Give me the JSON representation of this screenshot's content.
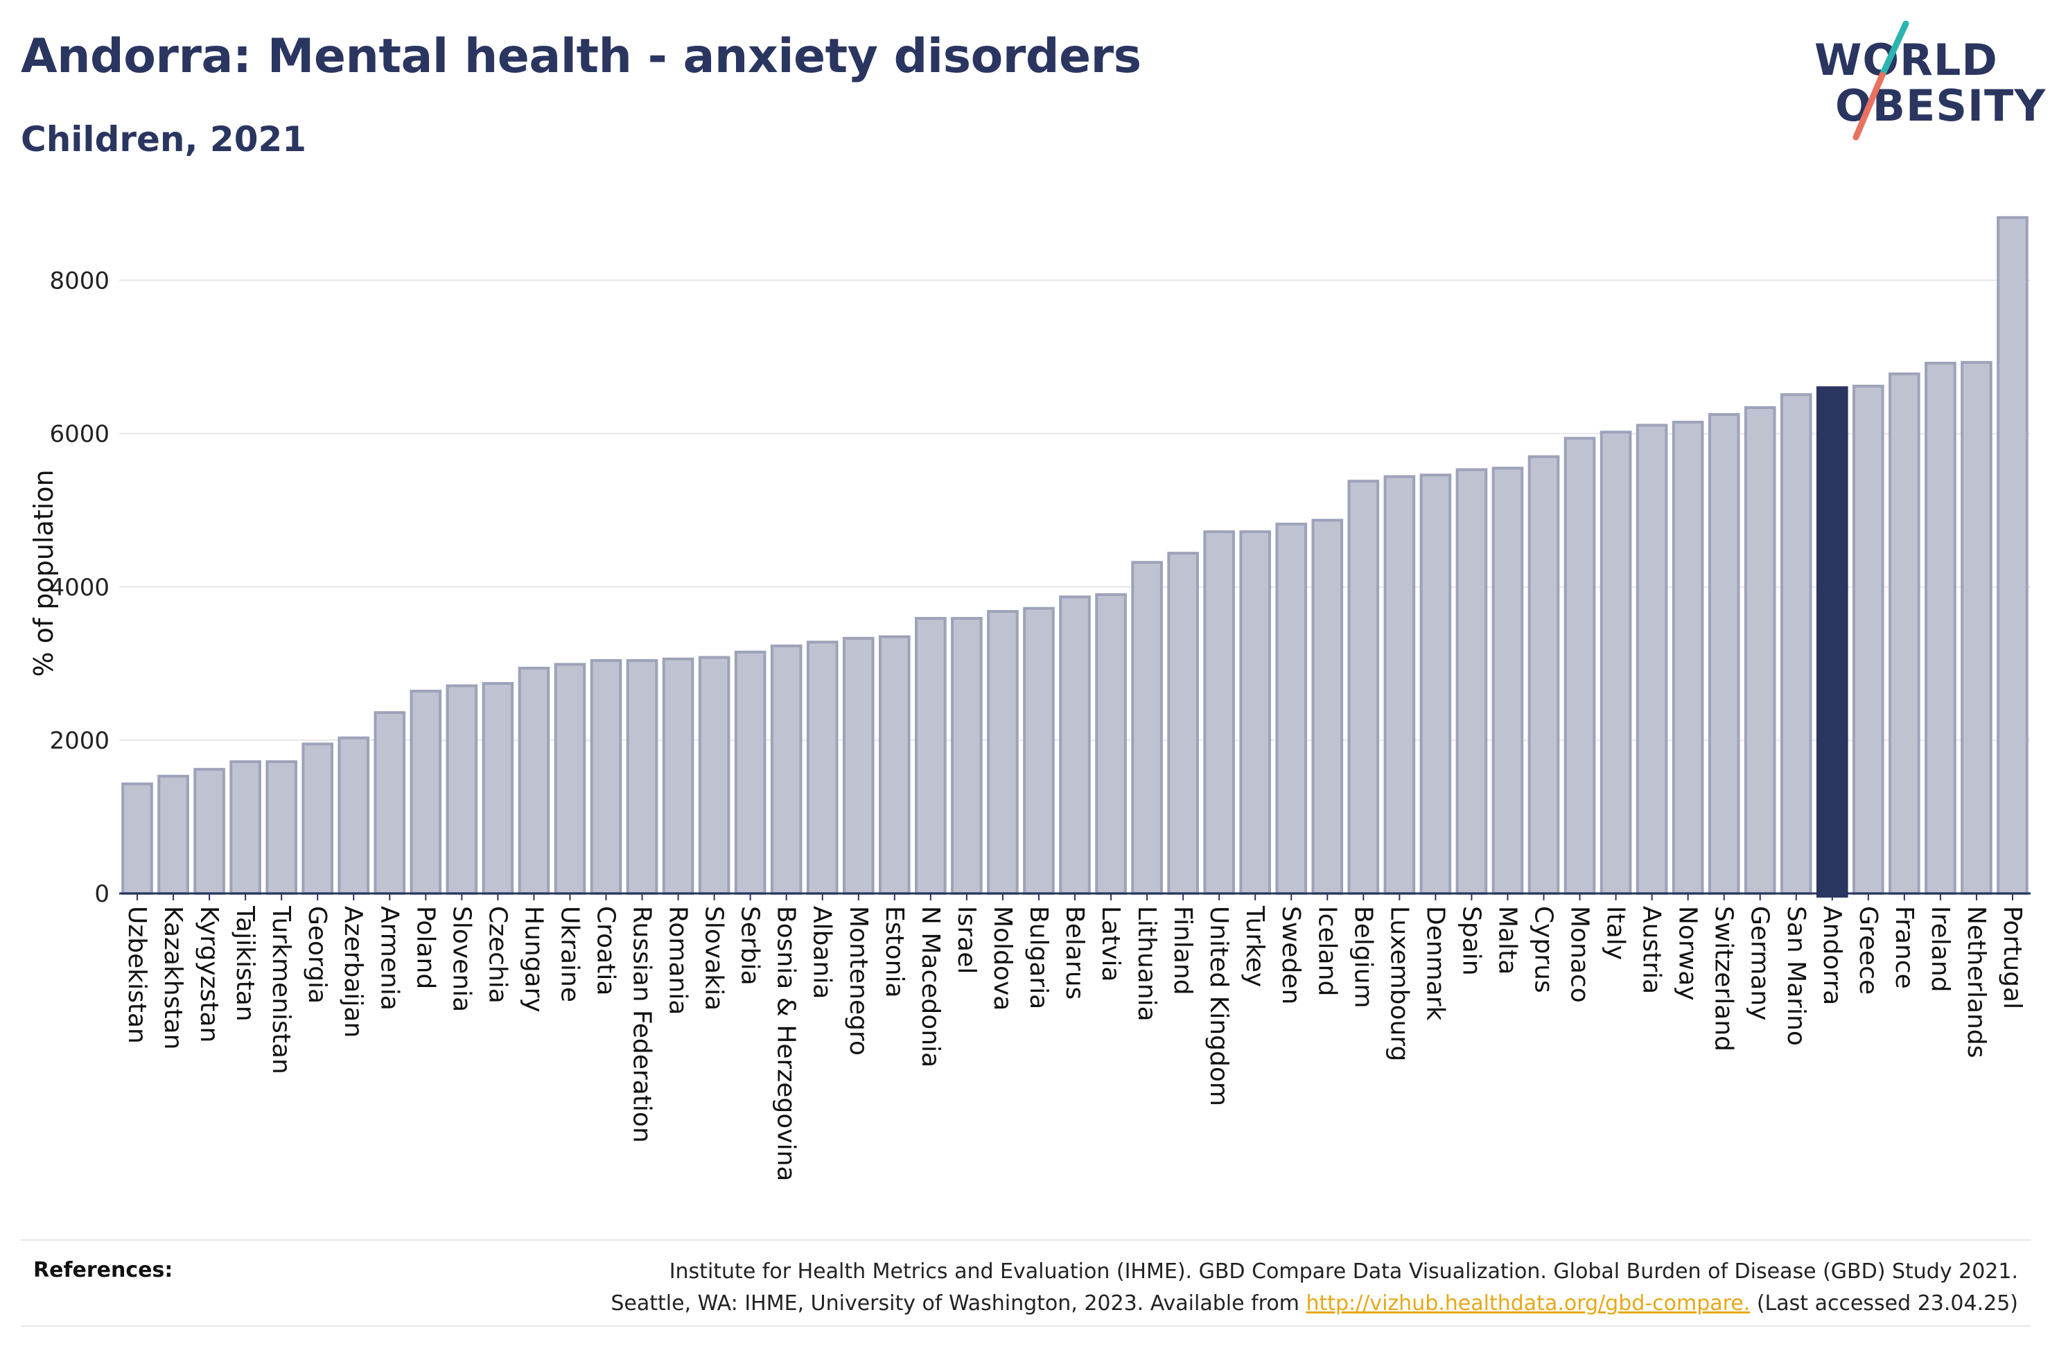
{
  "header": {
    "title": "Andorra: Mental health - anxiety disorders",
    "subtitle": "Children, 2021"
  },
  "logo": {
    "line1": "WORLD",
    "line2": "OBESITY"
  },
  "references": {
    "label": "References:",
    "line1": "Institute for Health Metrics and Evaluation (IHME). GBD Compare Data Visualization. Global Burden of Disease (GBD) Study 2021.",
    "line2_prefix": "Seattle, WA: IHME, University of Washington, 2023. Available from ",
    "link": "http://vizhub.healthdata.org/gbd-compare.",
    "line2_suffix": " (Last accessed 23.04.25)"
  },
  "chart_data": {
    "type": "bar",
    "ylabel": "% of population",
    "ylim": [
      0,
      8900
    ],
    "yticks": [
      0,
      2000,
      4000,
      6000,
      8000
    ],
    "grid": true,
    "highlight": "Andorra",
    "colors": {
      "bar": "#bfc2d1",
      "bar_edge": "#9ea2b9",
      "highlight": "#2a3560",
      "grid": "#e6e6ea",
      "axis": "#2a3560"
    },
    "categories": [
      "Uzbekistan",
      "Kazakhstan",
      "Kyrgyzstan",
      "Tajikistan",
      "Turkmenistan",
      "Georgia",
      "Azerbaijan",
      "Armenia",
      "Poland",
      "Slovenia",
      "Czechia",
      "Hungary",
      "Ukraine",
      "Croatia",
      "Russian Federation",
      "Romania",
      "Slovakia",
      "Serbia",
      "Bosnia & Herzegovina",
      "Albania",
      "Montenegro",
      "Estonia",
      "N Macedonia",
      "Israel",
      "Moldova",
      "Bulgaria",
      "Belarus",
      "Latvia",
      "Lithuania",
      "Finland",
      "United Kingdom",
      "Turkey",
      "Sweden",
      "Iceland",
      "Belgium",
      "Luxembourg",
      "Denmark",
      "Spain",
      "Malta",
      "Cyprus",
      "Monaco",
      "Italy",
      "Austria",
      "Norway",
      "Switzerland",
      "Germany",
      "San Marino",
      "Andorra",
      "Greece",
      "France",
      "Ireland",
      "Netherlands",
      "Portugal"
    ],
    "values": [
      1430,
      1530,
      1620,
      1720,
      1720,
      1950,
      2030,
      2360,
      2640,
      2710,
      2740,
      2940,
      2990,
      3040,
      3040,
      3060,
      3080,
      3150,
      3230,
      3280,
      3330,
      3350,
      3590,
      3590,
      3680,
      3720,
      3870,
      3900,
      4320,
      4440,
      4720,
      4720,
      4820,
      4870,
      5380,
      5440,
      5460,
      5530,
      5550,
      5700,
      5940,
      6020,
      6110,
      6150,
      6250,
      6340,
      6510,
      6600,
      6620,
      6780,
      6920,
      6930,
      8820
    ]
  }
}
